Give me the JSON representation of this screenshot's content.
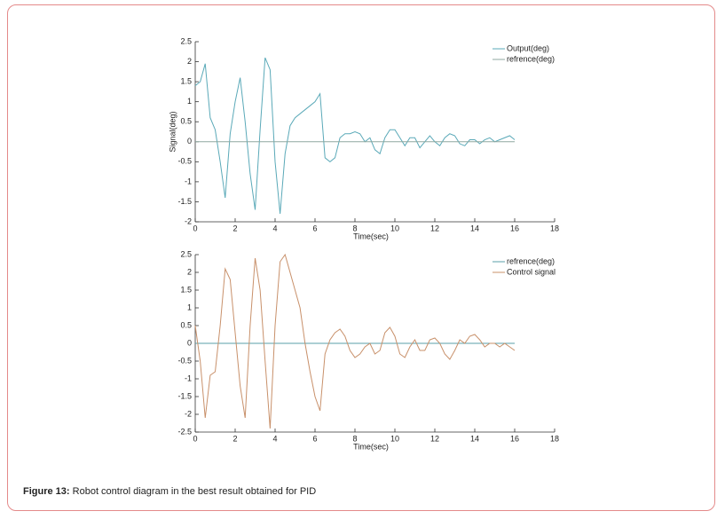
{
  "chart_data": [
    {
      "type": "line",
      "ylabel": "Signal(deg)",
      "xlabel": "Time(sec)",
      "legend": "upper right",
      "xlim": [
        0,
        18
      ],
      "xticks": [
        0,
        2,
        4,
        6,
        8,
        10,
        12,
        14,
        16,
        18
      ],
      "ylim": [
        -2,
        2.5
      ],
      "yticks": [
        -2,
        -1.5,
        -1,
        -0.5,
        0,
        0.5,
        1,
        1.5,
        2,
        2.5
      ],
      "x": [
        0,
        0.25,
        0.5,
        0.75,
        1,
        1.25,
        1.5,
        1.75,
        2,
        2.25,
        2.5,
        2.75,
        3,
        3.25,
        3.5,
        3.75,
        4,
        4.25,
        4.5,
        4.75,
        5,
        5.25,
        5.5,
        5.75,
        6,
        6.25,
        6.5,
        6.75,
        7,
        7.25,
        7.5,
        7.75,
        8,
        8.25,
        8.5,
        8.75,
        9,
        9.25,
        9.5,
        9.75,
        10,
        10.25,
        10.5,
        10.75,
        11,
        11.25,
        11.5,
        11.75,
        12,
        12.25,
        12.5,
        12.75,
        13,
        13.25,
        13.5,
        13.75,
        14,
        14.25,
        14.5,
        14.75,
        15,
        15.25,
        15.5,
        15.75,
        16
      ],
      "series": [
        {
          "name": "Output(deg)",
          "color": "#5aa9b8",
          "values": [
            1.4,
            1.5,
            1.95,
            0.6,
            0.3,
            -0.5,
            -1.4,
            0.2,
            1.0,
            1.6,
            0.5,
            -0.8,
            -1.7,
            0.3,
            2.1,
            1.8,
            -0.5,
            -1.8,
            -0.3,
            0.4,
            0.6,
            0.7,
            0.8,
            0.9,
            1.0,
            1.2,
            -0.4,
            -0.5,
            -0.4,
            0.1,
            0.2,
            0.2,
            0.25,
            0.2,
            0.0,
            0.1,
            -0.2,
            -0.3,
            0.1,
            0.3,
            0.3,
            0.1,
            -0.1,
            0.1,
            0.1,
            -0.15,
            0.0,
            0.15,
            0.0,
            -0.1,
            0.1,
            0.2,
            0.15,
            -0.05,
            -0.1,
            0.05,
            0.05,
            -0.05,
            0.05,
            0.1,
            0.0,
            0.05,
            0.1,
            0.15,
            0.05
          ]
        },
        {
          "name": "refrence(deg)",
          "color": "#8fa8a0",
          "values": [
            0,
            0,
            0,
            0,
            0,
            0,
            0,
            0,
            0,
            0,
            0,
            0,
            0,
            0,
            0,
            0,
            0,
            0,
            0,
            0,
            0,
            0,
            0,
            0,
            0,
            0,
            0,
            0,
            0,
            0,
            0,
            0,
            0,
            0,
            0,
            0,
            0,
            0,
            0,
            0,
            0,
            0,
            0,
            0,
            0,
            0,
            0,
            0,
            0,
            0,
            0,
            0,
            0,
            0,
            0,
            0,
            0,
            0,
            0,
            0,
            0,
            0,
            0,
            0,
            0
          ]
        }
      ]
    },
    {
      "type": "line",
      "xlabel": "Time(sec)",
      "legend": "upper right",
      "xlim": [
        0,
        18
      ],
      "xticks": [
        0,
        2,
        4,
        6,
        8,
        10,
        12,
        14,
        16,
        18
      ],
      "ylim": [
        -2.5,
        2.5
      ],
      "yticks": [
        -2.5,
        -2,
        -1.5,
        -1,
        -0.5,
        0,
        0.5,
        1,
        1.5,
        2,
        2.5
      ],
      "x": [
        0,
        0.25,
        0.5,
        0.75,
        1,
        1.25,
        1.5,
        1.75,
        2,
        2.25,
        2.5,
        2.75,
        3,
        3.25,
        3.5,
        3.75,
        4,
        4.25,
        4.5,
        4.75,
        5,
        5.25,
        5.5,
        5.75,
        6,
        6.25,
        6.5,
        6.75,
        7,
        7.25,
        7.5,
        7.75,
        8,
        8.25,
        8.5,
        8.75,
        9,
        9.25,
        9.5,
        9.75,
        10,
        10.25,
        10.5,
        10.75,
        11,
        11.25,
        11.5,
        11.75,
        12,
        12.25,
        12.5,
        12.75,
        13,
        13.25,
        13.5,
        13.75,
        14,
        14.25,
        14.5,
        14.75,
        15,
        15.25,
        15.5,
        15.75,
        16
      ],
      "series": [
        {
          "name": "refrence(deg)",
          "color": "#5a9fa8",
          "values": [
            0,
            0,
            0,
            0,
            0,
            0,
            0,
            0,
            0,
            0,
            0,
            0,
            0,
            0,
            0,
            0,
            0,
            0,
            0,
            0,
            0,
            0,
            0,
            0,
            0,
            0,
            0,
            0,
            0,
            0,
            0,
            0,
            0,
            0,
            0,
            0,
            0,
            0,
            0,
            0,
            0,
            0,
            0,
            0,
            0,
            0,
            0,
            0,
            0,
            0,
            0,
            0,
            0,
            0,
            0,
            0,
            0,
            0,
            0,
            0,
            0,
            0,
            0,
            0,
            0
          ]
        },
        {
          "name": "Control signal",
          "color": "#c8906a",
          "values": [
            0.5,
            -0.5,
            -2.1,
            -0.9,
            -0.8,
            0.5,
            2.1,
            1.8,
            0.3,
            -1.2,
            -2.1,
            0.5,
            2.4,
            1.5,
            -0.5,
            -2.4,
            0.5,
            2.3,
            2.5,
            2.0,
            1.5,
            1.0,
            0.0,
            -0.8,
            -1.5,
            -1.9,
            -0.3,
            0.1,
            0.3,
            0.4,
            0.2,
            -0.2,
            -0.4,
            -0.3,
            -0.1,
            0.0,
            -0.3,
            -0.2,
            0.3,
            0.45,
            0.2,
            -0.3,
            -0.4,
            -0.1,
            0.1,
            -0.2,
            -0.2,
            0.1,
            0.15,
            0.0,
            -0.3,
            -0.45,
            -0.2,
            0.1,
            0.0,
            0.2,
            0.25,
            0.1,
            -0.1,
            0.0,
            0.0,
            -0.1,
            0.0,
            -0.1,
            -0.2
          ]
        }
      ]
    }
  ],
  "caption": {
    "label": "Figure 13:",
    "text": "Robot control diagram in the best result obtained for PID"
  }
}
